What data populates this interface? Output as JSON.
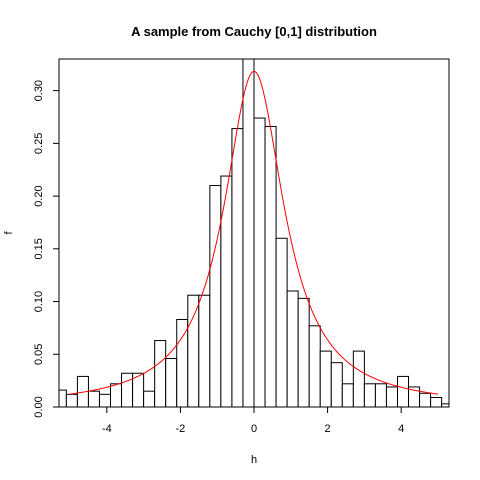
{
  "chart_data": {
    "type": "histogram",
    "title": "A sample from Cauchy [0,1] distribution",
    "xlabel": "h",
    "ylabel": "f",
    "xlim": [
      -5.3,
      5.3
    ],
    "ylim": [
      0,
      0.33
    ],
    "x_ticks": [
      -4,
      -2,
      0,
      2,
      4
    ],
    "x_tick_labels": [
      "-4",
      "-2",
      "0",
      "2",
      "4"
    ],
    "y_ticks": [
      0.0,
      0.05,
      0.1,
      0.15,
      0.2,
      0.25,
      0.3
    ],
    "y_tick_labels": [
      "0.00",
      "0.05",
      "0.10",
      "0.15",
      "0.20",
      "0.25",
      "0.30"
    ],
    "bin_width": 0.3,
    "bins": [
      {
        "x0": -5.4,
        "density": 0.016
      },
      {
        "x0": -5.1,
        "density": 0.012
      },
      {
        "x0": -4.8,
        "density": 0.029
      },
      {
        "x0": -4.5,
        "density": 0.015
      },
      {
        "x0": -4.2,
        "density": 0.012
      },
      {
        "x0": -3.9,
        "density": 0.022
      },
      {
        "x0": -3.6,
        "density": 0.032
      },
      {
        "x0": -3.3,
        "density": 0.032
      },
      {
        "x0": -3.0,
        "density": 0.015
      },
      {
        "x0": -2.7,
        "density": 0.063
      },
      {
        "x0": -2.4,
        "density": 0.046
      },
      {
        "x0": -2.1,
        "density": 0.083
      },
      {
        "x0": -1.8,
        "density": 0.106
      },
      {
        "x0": -1.5,
        "density": 0.106
      },
      {
        "x0": -1.2,
        "density": 0.21
      },
      {
        "x0": -0.9,
        "density": 0.219
      },
      {
        "x0": -0.6,
        "density": 0.264
      },
      {
        "x0": -0.3,
        "density": 0.332
      },
      {
        "x0": 0.0,
        "density": 0.274
      },
      {
        "x0": 0.3,
        "density": 0.266
      },
      {
        "x0": 0.6,
        "density": 0.16
      },
      {
        "x0": 0.9,
        "density": 0.11
      },
      {
        "x0": 1.2,
        "density": 0.103
      },
      {
        "x0": 1.5,
        "density": 0.077
      },
      {
        "x0": 1.8,
        "density": 0.053
      },
      {
        "x0": 2.1,
        "density": 0.042
      },
      {
        "x0": 2.4,
        "density": 0.022
      },
      {
        "x0": 2.7,
        "density": 0.053
      },
      {
        "x0": 3.0,
        "density": 0.022
      },
      {
        "x0": 3.3,
        "density": 0.022
      },
      {
        "x0": 3.6,
        "density": 0.019
      },
      {
        "x0": 3.9,
        "density": 0.029
      },
      {
        "x0": 4.2,
        "density": 0.019
      },
      {
        "x0": 4.5,
        "density": 0.013
      },
      {
        "x0": 4.8,
        "density": 0.009
      },
      {
        "x0": 5.1,
        "density": 0.003
      }
    ],
    "curve": {
      "function": "cauchy_density",
      "location": 0,
      "scale": 1,
      "x_range": [
        -5,
        5
      ],
      "color": "#ff0000"
    },
    "bar_fill": "#ffffff",
    "bar_stroke": "#000000",
    "grid": false,
    "legend": "none"
  }
}
